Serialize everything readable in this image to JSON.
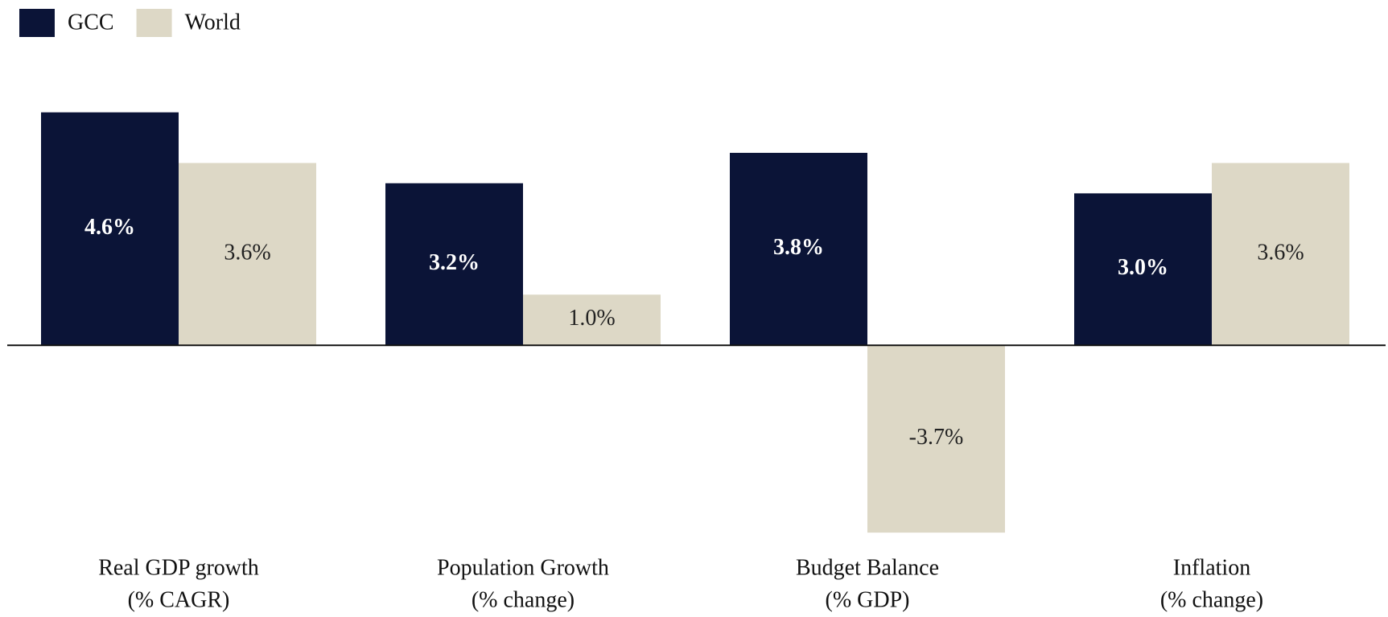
{
  "chart_data": {
    "type": "bar",
    "categories": [
      [
        "Real GDP growth",
        "(% CAGR)"
      ],
      [
        "Population Growth",
        "(% change)"
      ],
      [
        "Budget Balance",
        "(% GDP)"
      ],
      [
        "Inflation",
        "(% change)"
      ]
    ],
    "series": [
      {
        "name": "GCC",
        "color": "#0b1437",
        "values": [
          4.6,
          3.2,
          3.8,
          3.0
        ],
        "value_labels": [
          "4.6%",
          "3.2%",
          "3.8%",
          "3.0%"
        ]
      },
      {
        "name": "World",
        "color": "#ddd8c6",
        "values": [
          3.6,
          1.0,
          -3.7,
          3.6
        ],
        "value_labels": [
          "3.6%",
          "1.0%",
          "-3.7%",
          "3.6%"
        ]
      }
    ],
    "ylim": [
      -4,
      5.5
    ],
    "legend": "top-left"
  }
}
